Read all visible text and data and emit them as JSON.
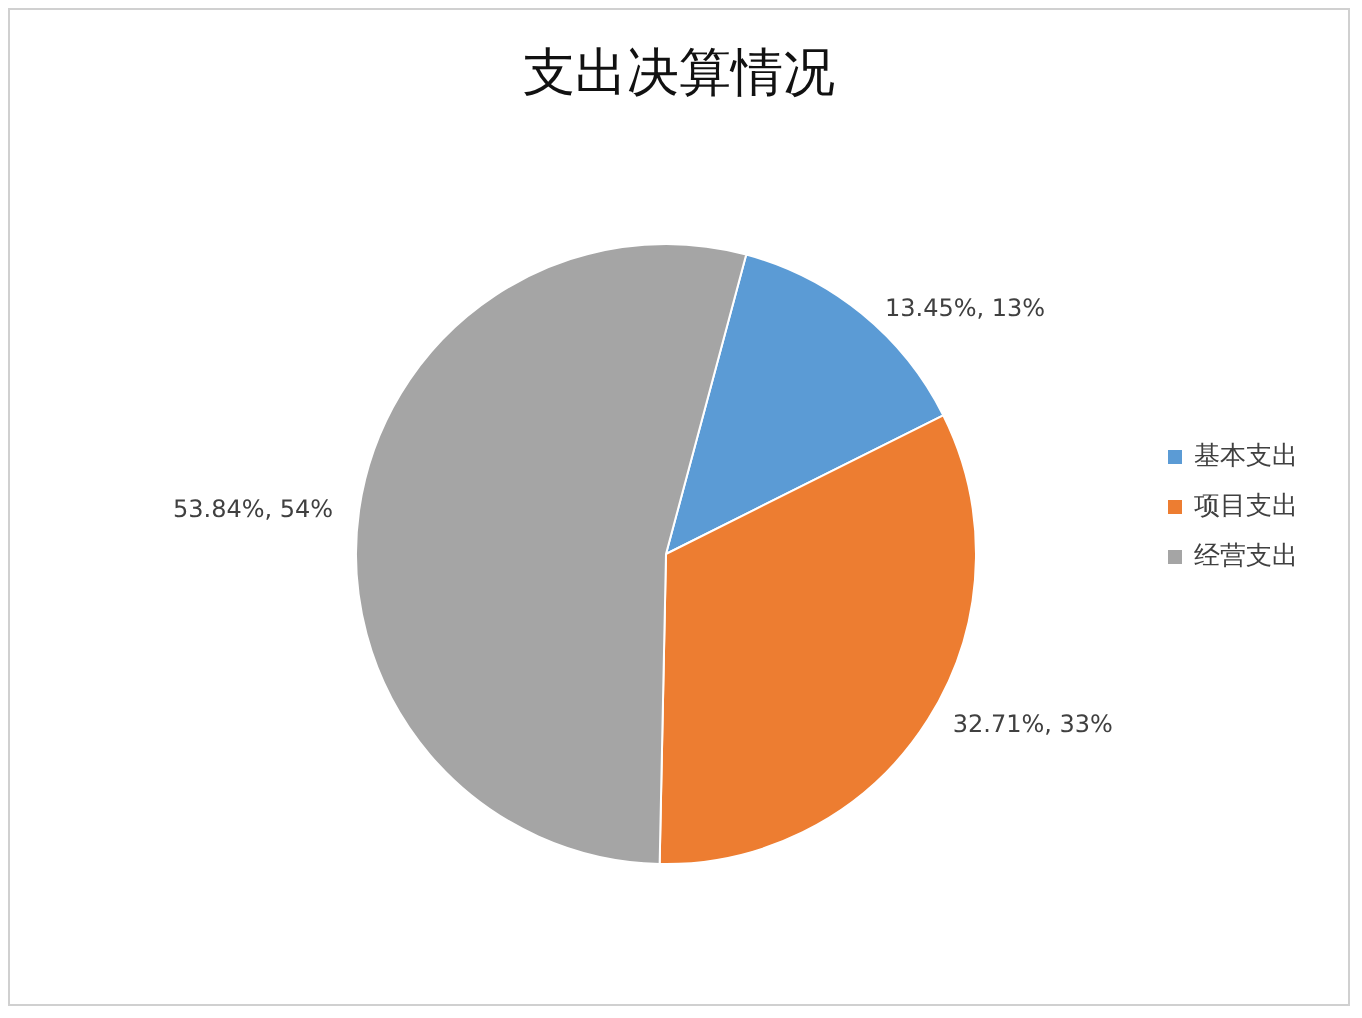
{
  "chart_data": {
    "type": "pie",
    "title": "支出决算情况",
    "categories": [
      "基本支出",
      "项目支出",
      "经营支出"
    ],
    "values": [
      13.45,
      32.71,
      53.84
    ],
    "colors": [
      "#5b9bd5",
      "#ed7d31",
      "#a5a5a5"
    ],
    "value_labels": [
      "13.45%, 13%",
      "32.71%, 33%",
      "53.84%, 54%"
    ],
    "legend": "right"
  }
}
